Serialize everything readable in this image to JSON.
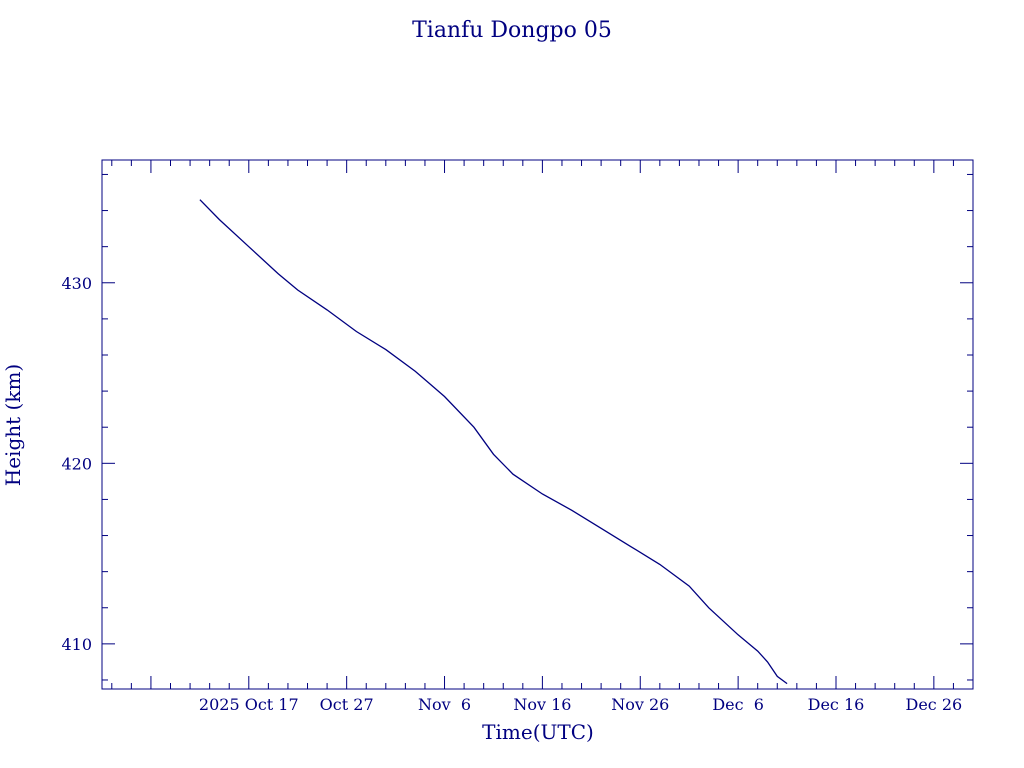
{
  "chart_data": {
    "type": "line",
    "title": "Tianfu Dongpo 05",
    "xlabel": "Time(UTC)",
    "ylabel": "Height (km)",
    "color": "#000080",
    "xlim": [
      "2025-10-02",
      "2025-12-30"
    ],
    "ylim": [
      407.5,
      436.8
    ],
    "x_ticks": [
      {
        "date": "2025-10-17",
        "label": "2025 Oct 17"
      },
      {
        "date": "2025-10-27",
        "label": "Oct 27"
      },
      {
        "date": "2025-11-06",
        "label": "Nov  6"
      },
      {
        "date": "2025-11-16",
        "label": "Nov 16"
      },
      {
        "date": "2025-11-26",
        "label": "Nov 26"
      },
      {
        "date": "2025-12-06",
        "label": "Dec  6"
      },
      {
        "date": "2025-12-16",
        "label": "Dec 16"
      },
      {
        "date": "2025-12-26",
        "label": "Dec 26"
      }
    ],
    "y_ticks": [
      {
        "value": 410,
        "label": "410"
      },
      {
        "value": 420,
        "label": "420"
      },
      {
        "value": 430,
        "label": "430"
      }
    ],
    "series": [
      {
        "x": [
          "2025-10-12",
          "2025-10-14",
          "2025-10-17",
          "2025-10-20",
          "2025-10-22",
          "2025-10-25",
          "2025-10-28",
          "2025-10-31",
          "2025-11-03",
          "2025-11-06",
          "2025-11-09",
          "2025-11-11",
          "2025-11-13",
          "2025-11-16",
          "2025-11-19",
          "2025-11-22",
          "2025-11-25",
          "2025-11-28",
          "2025-12-01",
          "2025-12-03",
          "2025-12-06",
          "2025-12-08",
          "2025-12-09",
          "2025-12-10",
          "2025-12-11"
        ],
        "y": [
          434.6,
          433.5,
          432.0,
          430.5,
          429.6,
          428.5,
          427.3,
          426.3,
          425.1,
          423.7,
          422.0,
          420.5,
          419.4,
          418.3,
          417.4,
          416.4,
          415.4,
          414.4,
          413.2,
          412.0,
          410.5,
          409.6,
          409.0,
          408.2,
          407.8
        ]
      }
    ]
  }
}
